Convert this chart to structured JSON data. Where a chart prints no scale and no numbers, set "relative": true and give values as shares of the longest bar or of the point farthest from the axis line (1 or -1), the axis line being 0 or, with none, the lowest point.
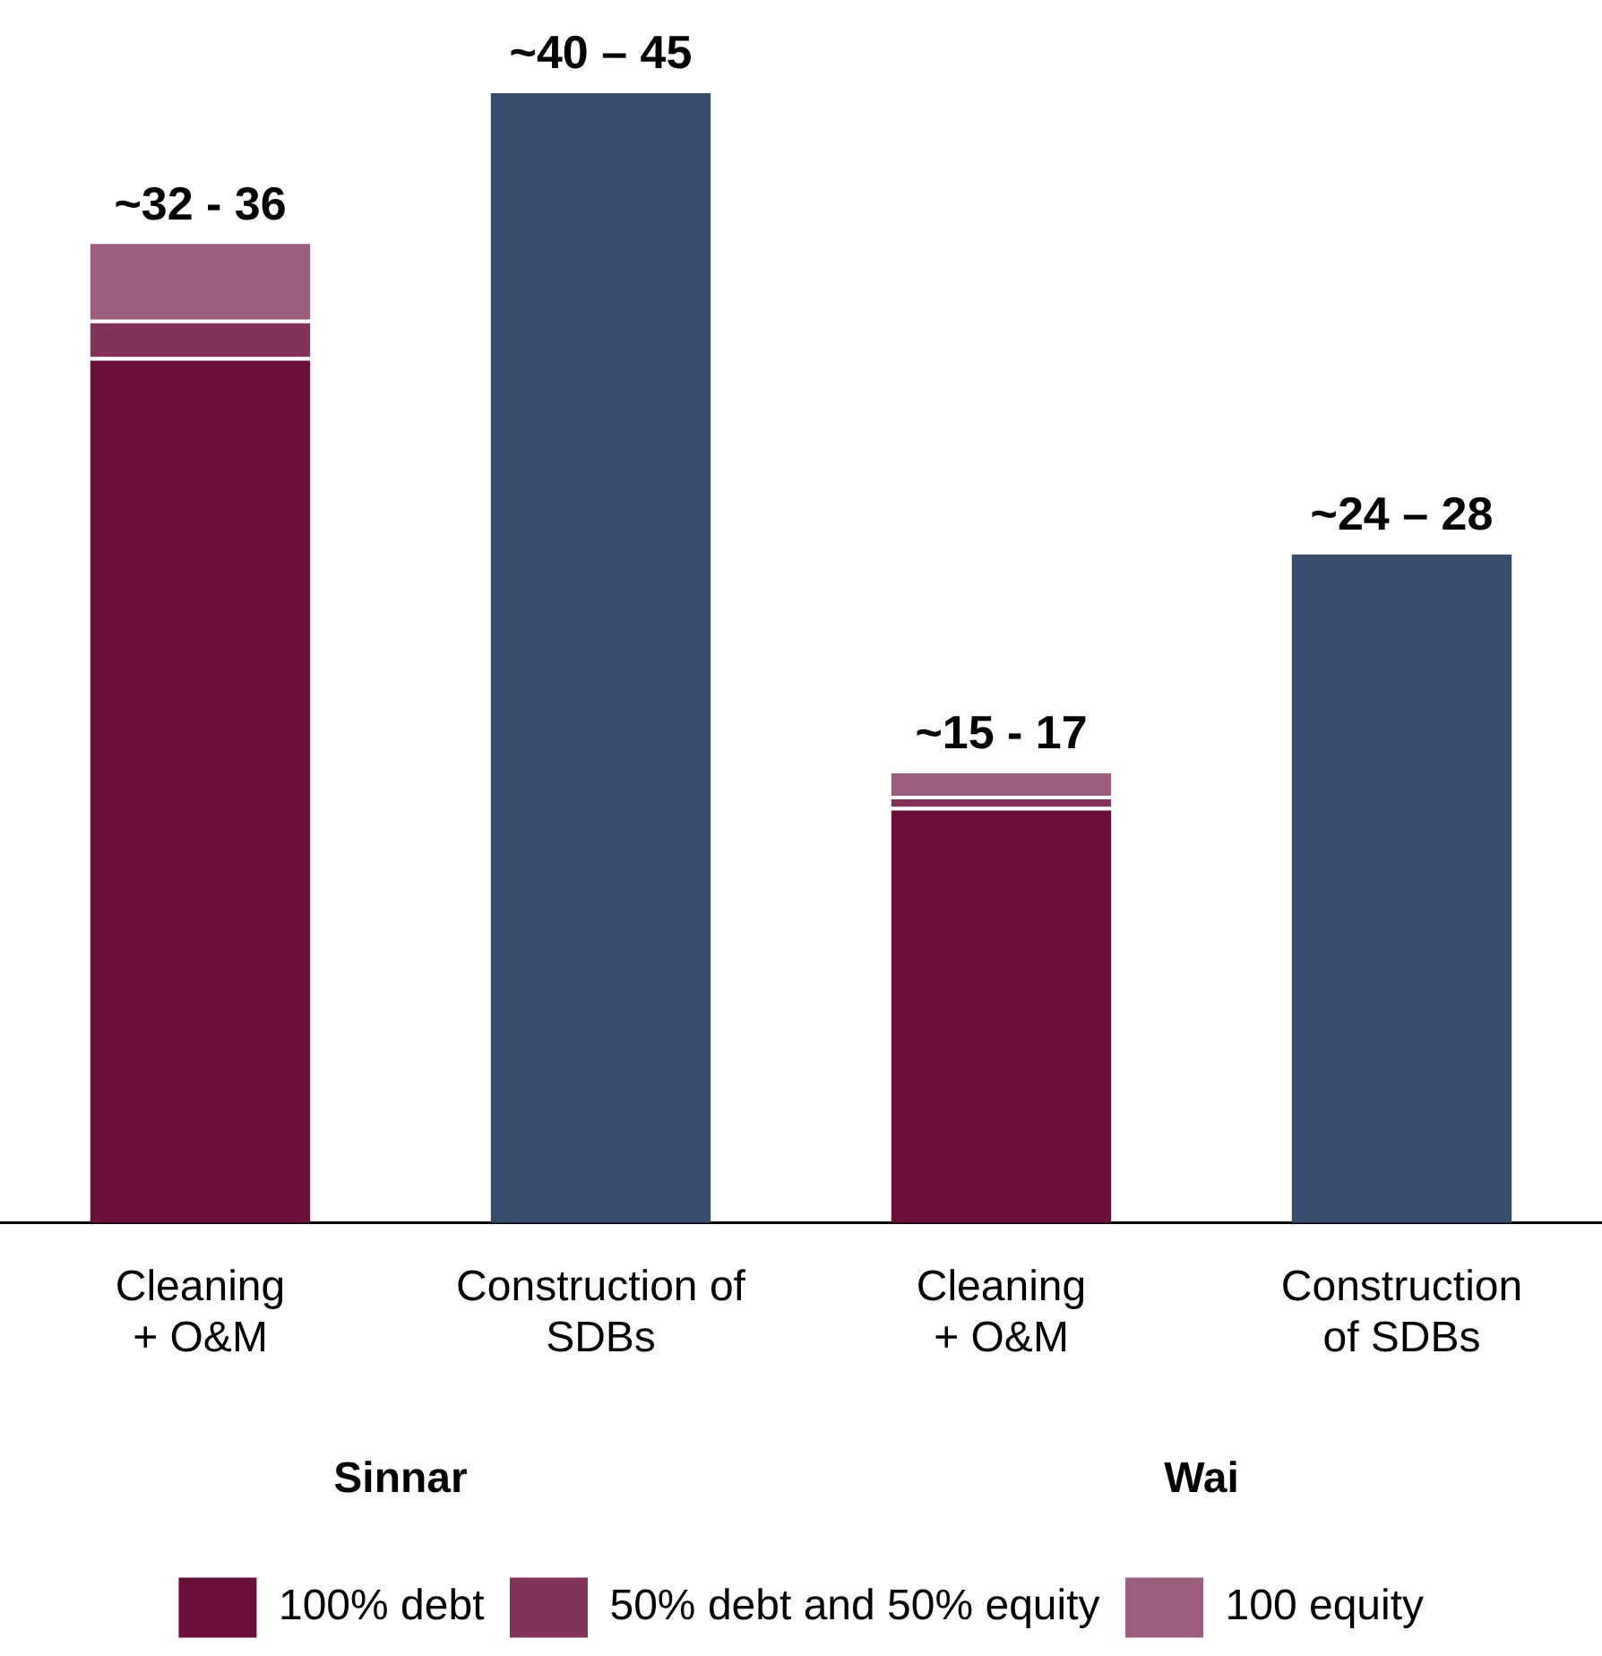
{
  "chart_data": {
    "type": "bar",
    "relative": true,
    "stacked": true,
    "legend": "bottom",
    "categories": [
      "Cleaning\n+ O&M",
      "Construction of\nSDBs",
      "Cleaning\n+ O&M",
      "Construction\nof SDBs"
    ],
    "series": [
      {
        "name": "100% debt",
        "color": "#6b0f3d",
        "values": [
          0.764,
          null,
          0.367,
          null
        ]
      },
      {
        "name": "50% debt and 50% equity",
        "color": "#83325c",
        "values": [
          0.033,
          null,
          0.01,
          null
        ]
      },
      {
        "name": "100 equity",
        "color": "#9b5e7e",
        "values": [
          0.07,
          null,
          0.023,
          null
        ]
      },
      {
        "color": "#384c6b",
        "values": [
          null,
          1,
          null,
          0.593
        ]
      }
    ],
    "totals": [
      "~32 - 36",
      "~40 – 45",
      "~15 - 17",
      "~24 – 28"
    ],
    "annotations": [
      "Sinnar",
      "Wai"
    ]
  }
}
